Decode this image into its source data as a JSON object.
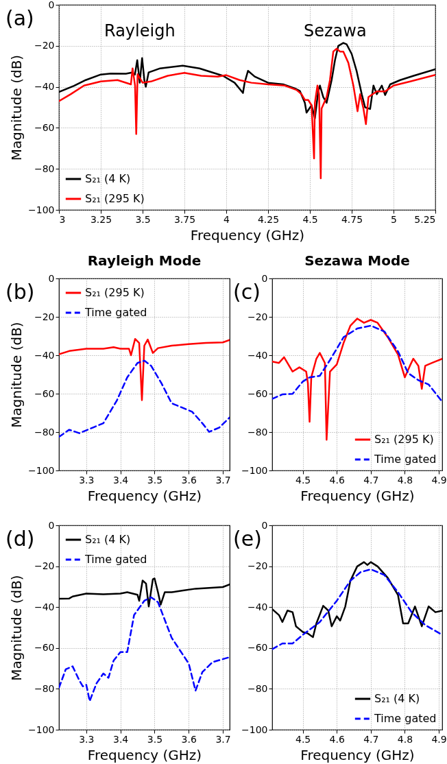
{
  "chart_data": [
    {
      "type": "line",
      "xlabel": "Frequency (GHz)",
      "ylabel": "Magnitude (dB)",
      "annotations": [
        "(a)",
        "Rayleigh",
        "Sezawa"
      ],
      "xlim": [
        3,
        5.25
      ],
      "xticks": [
        3,
        3.25,
        3.5,
        3.75,
        4,
        4.25,
        4.5,
        4.75,
        5,
        5.25
      ],
      "ylim": [
        -100,
        0
      ],
      "yticks": [
        -100,
        -80,
        -60,
        -40,
        -20,
        0
      ],
      "grid": true,
      "legend": "bottom left",
      "series": [
        {
          "name": "S₂₁ (4 K)",
          "color": "#000000",
          "line_style": "solid",
          "x": [
            3.0,
            3.09,
            3.16,
            3.25,
            3.31,
            3.4,
            3.437,
            3.454,
            3.468,
            3.483,
            3.497,
            3.511,
            3.519,
            3.536,
            3.605,
            3.74,
            3.84,
            3.98,
            4.05,
            4.1,
            4.11,
            4.13,
            4.17,
            4.25,
            4.34,
            4.41,
            4.44,
            4.47,
            4.48,
            4.51,
            4.53,
            4.55,
            4.56,
            4.58,
            4.6,
            4.63,
            4.65,
            4.67,
            4.7,
            4.72,
            4.75,
            4.78,
            4.81,
            4.83,
            4.86,
            4.88,
            4.9,
            4.93,
            4.95,
            4.98,
            5.04,
            5.12,
            5.25
          ],
          "values": [
            -42.5,
            -39.5,
            -36.7,
            -34,
            -33.5,
            -33.6,
            -33,
            -34,
            -27,
            -38,
            -26,
            -37,
            -40,
            -33,
            -31,
            -29.7,
            -31,
            -34.6,
            -38,
            -43,
            -38,
            -32.2,
            -35,
            -38,
            -38.8,
            -40.8,
            -42,
            -47.8,
            -52.6,
            -49,
            -55.4,
            -42,
            -39.4,
            -45,
            -47.8,
            -36.7,
            -27,
            -20,
            -18.6,
            -19.3,
            -24,
            -32.5,
            -43.6,
            -50,
            -50.8,
            -39.4,
            -43.6,
            -39.4,
            -44,
            -38.8,
            -36.7,
            -34.6,
            -31.4
          ]
        },
        {
          "name": "S₂₁ (295 K)",
          "color": "#ff0000",
          "line_style": "solid",
          "x": [
            3.0,
            3.07,
            3.15,
            3.25,
            3.35,
            3.43,
            3.44,
            3.455,
            3.462,
            3.47,
            3.5,
            3.55,
            3.65,
            3.75,
            3.85,
            3.95,
            4.0,
            4.08,
            4.15,
            4.25,
            4.35,
            4.42,
            4.45,
            4.47,
            4.49,
            4.51,
            4.525,
            4.53,
            4.545,
            4.555,
            4.565,
            4.57,
            4.6,
            4.62,
            4.64,
            4.66,
            4.68,
            4.7,
            4.73,
            4.76,
            4.785,
            4.8,
            4.82,
            4.835,
            4.85,
            4.9,
            4.95,
            5.0,
            5.1,
            5.25
          ],
          "values": [
            -47,
            -43.6,
            -39.4,
            -37.4,
            -36.7,
            -38.8,
            -31,
            -39.4,
            -63,
            -33.9,
            -38,
            -37.4,
            -34.6,
            -33.2,
            -34.6,
            -35,
            -34.3,
            -36.7,
            -38,
            -38.8,
            -39.4,
            -41.5,
            -43.6,
            -46.4,
            -46.4,
            -49,
            -74.9,
            -47.8,
            -39.4,
            -43.6,
            -84.6,
            -50.6,
            -45,
            -36.7,
            -22.8,
            -21.4,
            -22.8,
            -22.8,
            -28.3,
            -39.4,
            -51.9,
            -43.6,
            -50.6,
            -58.2,
            -45,
            -42.2,
            -42.2,
            -39.4,
            -37.4,
            -34.2
          ]
        }
      ]
    },
    {
      "type": "line",
      "title": "Rayleigh Mode",
      "xlabel": "Frequency (GHz)",
      "ylabel": "Magnitude (dB)",
      "annotations": [
        "(b)"
      ],
      "xlim": [
        3.22,
        3.72
      ],
      "xticks": [
        3.3,
        3.4,
        3.5,
        3.6,
        3.7
      ],
      "ylim": [
        -100,
        0
      ],
      "yticks": [
        -100,
        -80,
        -60,
        -40,
        -20,
        0
      ],
      "grid": true,
      "legend": "top left",
      "series": [
        {
          "name": "S₂₁ (295 K)",
          "color": "#ff0000",
          "line_style": "solid",
          "x": [
            3.22,
            3.25,
            3.3,
            3.35,
            3.38,
            3.4,
            3.425,
            3.431,
            3.443,
            3.455,
            3.463,
            3.47,
            3.48,
            3.495,
            3.51,
            3.55,
            3.6,
            3.65,
            3.7,
            3.72
          ],
          "values": [
            -39.5,
            -37.8,
            -36.6,
            -36.6,
            -35.8,
            -36.6,
            -36.6,
            -40,
            -31.5,
            -33.6,
            -63.4,
            -35,
            -31.8,
            -38.8,
            -36.3,
            -35,
            -34.2,
            -33.6,
            -33.3,
            -32
          ]
        },
        {
          "name": "Time gated",
          "color": "#0000ff",
          "line_style": "dashed",
          "x": [
            3.22,
            3.25,
            3.28,
            3.32,
            3.35,
            3.39,
            3.42,
            3.45,
            3.47,
            3.49,
            3.52,
            3.55,
            3.58,
            3.61,
            3.64,
            3.66,
            3.69,
            3.72
          ],
          "values": [
            -82.5,
            -78.8,
            -80.6,
            -77.6,
            -75.4,
            -63.4,
            -51.5,
            -44,
            -42.8,
            -45.5,
            -54.5,
            -65,
            -67.2,
            -69.4,
            -75.4,
            -79.9,
            -77.6,
            -72.4
          ]
        }
      ]
    },
    {
      "type": "line",
      "title": "Sezawa Mode",
      "xlabel": "Frequency (GHz)",
      "annotations": [
        "(c)"
      ],
      "xlim": [
        4.41,
        4.91
      ],
      "xticks": [
        4.5,
        4.6,
        4.7,
        4.8,
        4.9
      ],
      "ylim": [
        -100,
        0
      ],
      "yticks": [
        -100,
        -80,
        -60,
        -40,
        -20,
        0
      ],
      "grid": true,
      "legend": "bottom right",
      "series": [
        {
          "name": "S₂₁ (295 K)",
          "color": "#ff0000",
          "line_style": "solid",
          "x": [
            4.41,
            4.43,
            4.445,
            4.47,
            4.49,
            4.51,
            4.515,
            4.52,
            4.525,
            4.54,
            4.55,
            4.565,
            4.57,
            4.58,
            4.6,
            4.62,
            4.64,
            4.66,
            4.68,
            4.7,
            4.72,
            4.75,
            4.78,
            4.8,
            4.815,
            4.825,
            4.84,
            4.85,
            4.86,
            4.88,
            4.91
          ],
          "values": [
            -43.3,
            -44,
            -41,
            -48.5,
            -46.3,
            -48.5,
            -54.5,
            -74.6,
            -51.5,
            -41.8,
            -38.8,
            -44,
            -84,
            -48.5,
            -44.8,
            -33.6,
            -24.6,
            -20.9,
            -23.1,
            -21.6,
            -23.1,
            -30.6,
            -39.6,
            -51.5,
            -45.5,
            -41.8,
            -45.5,
            -57.5,
            -45.5,
            -44,
            -41.8
          ]
        },
        {
          "name": "Time gated",
          "color": "#0000ff",
          "line_style": "dashed",
          "x": [
            4.41,
            4.44,
            4.47,
            4.5,
            4.52,
            4.55,
            4.58,
            4.62,
            4.66,
            4.7,
            4.74,
            4.78,
            4.81,
            4.84,
            4.87,
            4.91
          ],
          "values": [
            -62.7,
            -60.4,
            -60.1,
            -53.7,
            -51.5,
            -50.7,
            -42.5,
            -30.6,
            -26.1,
            -24.6,
            -27.6,
            -38,
            -49.3,
            -53,
            -55.2,
            -64.2
          ]
        }
      ]
    },
    {
      "type": "line",
      "xlabel": "Frequency (GHz)",
      "ylabel": "Magnitude (dB)",
      "annotations": [
        "(d)"
      ],
      "xlim": [
        3.22,
        3.72
      ],
      "xticks": [
        3.3,
        3.4,
        3.5,
        3.6,
        3.7
      ],
      "ylim": [
        -100,
        0
      ],
      "yticks": [
        -100,
        -80,
        -60,
        -40,
        -20,
        0
      ],
      "grid": true,
      "legend": "top left",
      "series": [
        {
          "name": "S₂₁ (4 K)",
          "color": "#000000",
          "line_style": "solid",
          "x": [
            3.22,
            3.25,
            3.26,
            3.3,
            3.35,
            3.4,
            3.42,
            3.45,
            3.455,
            3.465,
            3.475,
            3.483,
            3.495,
            3.5,
            3.51,
            3.518,
            3.53,
            3.55,
            3.58,
            3.62,
            3.66,
            3.7,
            3.72
          ],
          "values": [
            -35.9,
            -35.8,
            -34.8,
            -33.4,
            -33.7,
            -33.4,
            -32.7,
            -34,
            -36.9,
            -27,
            -28.5,
            -39.7,
            -26.4,
            -26,
            -32.7,
            -38.8,
            -32.7,
            -32.7,
            -32,
            -31,
            -30.6,
            -30.2,
            -28.9
          ]
        },
        {
          "name": "Time gated",
          "color": "#0000ff",
          "line_style": "dashed",
          "x": [
            3.22,
            3.24,
            3.26,
            3.28,
            3.29,
            3.3,
            3.31,
            3.33,
            3.35,
            3.365,
            3.38,
            3.4,
            3.42,
            3.44,
            3.47,
            3.49,
            3.51,
            3.55,
            3.6,
            3.62,
            3.64,
            3.67,
            3.72
          ],
          "values": [
            -79.5,
            -70.4,
            -69,
            -76,
            -78.8,
            -78,
            -86,
            -77.3,
            -72.5,
            -74.6,
            -66.2,
            -62,
            -62,
            -43.9,
            -36.9,
            -35.2,
            -37.6,
            -55,
            -67.6,
            -80.9,
            -71.8,
            -66.9,
            -64.5
          ]
        }
      ]
    },
    {
      "type": "line",
      "xlabel": "Frequency (GHz)",
      "annotations": [
        "(e)"
      ],
      "xlim": [
        4.41,
        4.91
      ],
      "xticks": [
        4.5,
        4.6,
        4.7,
        4.8,
        4.9
      ],
      "ylim": [
        -100,
        0
      ],
      "yticks": [
        -100,
        -80,
        -60,
        -40,
        -20,
        0
      ],
      "grid": true,
      "legend": "bottom right",
      "series": [
        {
          "name": "S₂₁ (4 K)",
          "color": "#000000",
          "line_style": "solid",
          "x": [
            4.41,
            4.43,
            4.44,
            4.455,
            4.47,
            4.48,
            4.49,
            4.5,
            4.515,
            4.53,
            4.54,
            4.56,
            4.575,
            4.585,
            4.6,
            4.61,
            4.625,
            4.64,
            4.66,
            4.68,
            4.69,
            4.7,
            4.72,
            4.75,
            4.78,
            4.795,
            4.81,
            4.83,
            4.85,
            4.87,
            4.89,
            4.91
          ],
          "values": [
            -41,
            -43.9,
            -47.3,
            -41.7,
            -42.5,
            -49.4,
            -50.8,
            -52.2,
            -52.9,
            -54.7,
            -48,
            -39.4,
            -41.7,
            -49.4,
            -44.5,
            -46.6,
            -39.7,
            -27.1,
            -20.1,
            -18,
            -19.4,
            -18,
            -20.1,
            -25.7,
            -34.1,
            -48,
            -48,
            -39.7,
            -49.4,
            -39.7,
            -42.5,
            -41.8
          ]
        },
        {
          "name": "Time gated",
          "color": "#0000ff",
          "line_style": "dashed",
          "x": [
            4.41,
            4.44,
            4.47,
            4.5,
            4.55,
            4.6,
            4.64,
            4.67,
            4.7,
            4.74,
            4.78,
            4.82,
            4.86,
            4.91
          ],
          "values": [
            -60.6,
            -57.8,
            -57.8,
            -53.6,
            -47.3,
            -36.9,
            -27.1,
            -22.9,
            -21.5,
            -24.3,
            -32.7,
            -42.5,
            -48.8,
            -53.6
          ]
        }
      ]
    }
  ]
}
